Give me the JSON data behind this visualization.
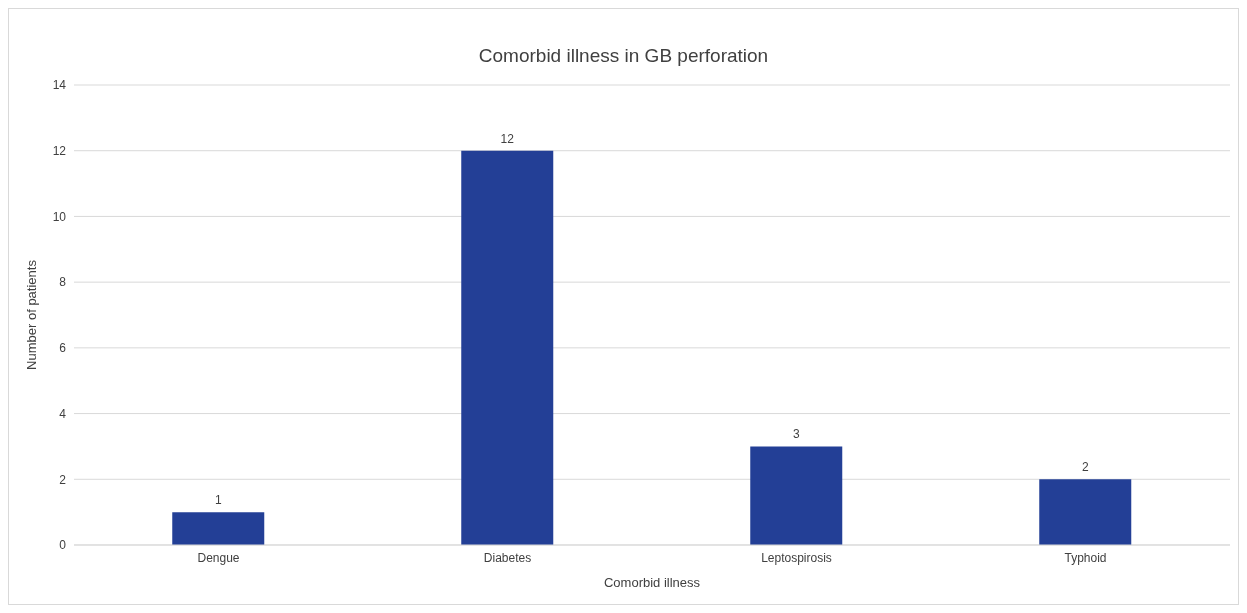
{
  "chart_data": {
    "type": "bar",
    "title": "Comorbid illness in GB perforation",
    "xlabel": "Comorbid illness",
    "ylabel": "Number of patients",
    "categories": [
      "Dengue",
      "Diabetes",
      "Leptospirosis",
      "Typhoid"
    ],
    "values": [
      1,
      12,
      3,
      2
    ],
    "color": "#233f96",
    "ylim": [
      0,
      14
    ],
    "yticks": [
      0,
      2,
      4,
      6,
      8,
      10,
      12,
      14
    ],
    "grid": "y",
    "data_labels": true,
    "legend": false
  }
}
